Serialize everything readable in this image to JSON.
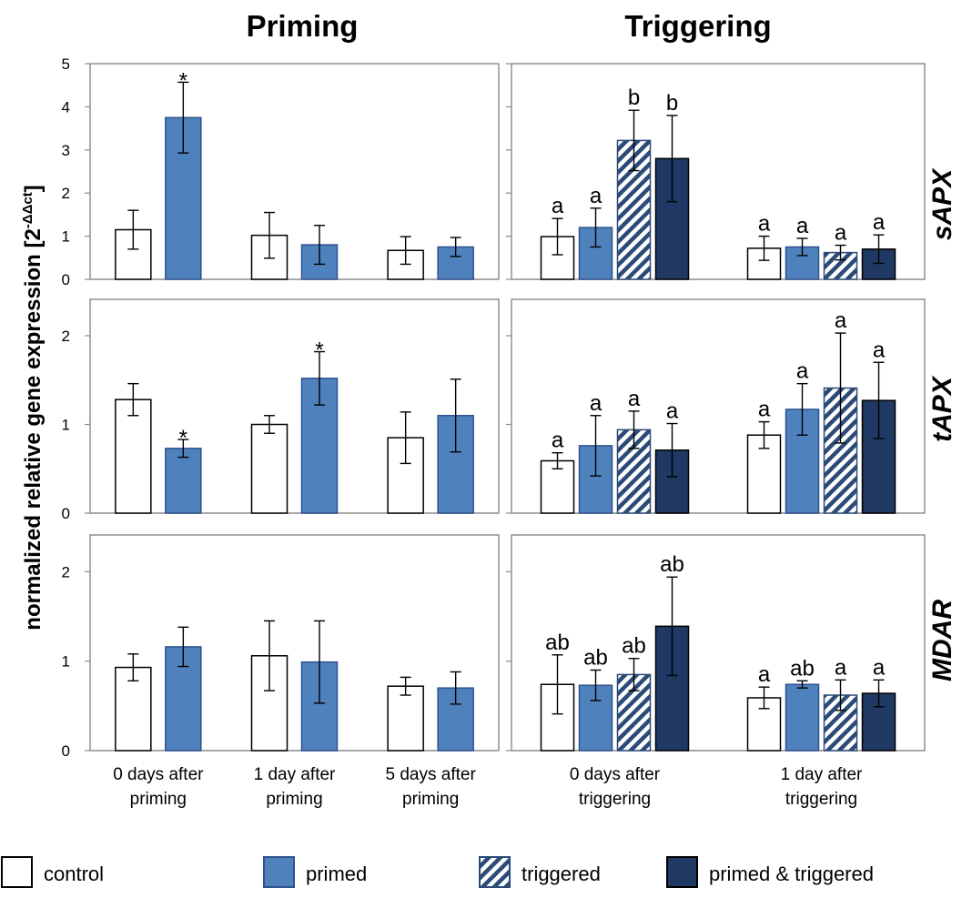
{
  "figure": {
    "column_titles": [
      "Priming",
      "Triggering"
    ],
    "ylabel_main": "normalized relative gene expression [2",
    "ylabel_sup": "-ΔΔct",
    "ylabel_end": "]"
  },
  "legend": [
    {
      "label": "control",
      "style": "control"
    },
    {
      "label": "primed",
      "style": "primed"
    },
    {
      "label": "triggered",
      "style": "triggered"
    },
    {
      "label": "primed & triggered",
      "style": "primed_triggered"
    }
  ],
  "colors": {
    "control": "#ffffff",
    "primed": "#4f81bd",
    "primed_triggered_fill": "#1f3864",
    "triggered_stripe": "#2c4a78",
    "primed_border": "#2f528f",
    "frame": "#7f7f7f"
  },
  "chart_data": [
    {
      "id": "priming_sapx",
      "type": "bar",
      "panel": "Priming",
      "gene": "sAPX",
      "ylim": [
        0,
        5
      ],
      "yticks": [
        "0",
        "1",
        "2",
        "3",
        "4",
        "5"
      ],
      "categories": [
        [
          "0 days after",
          "priming"
        ],
        [
          "1 day after",
          "priming"
        ],
        [
          "5 days after",
          "priming"
        ]
      ],
      "series": [
        {
          "name": "control",
          "style": "control",
          "values": [
            1.15,
            1.02,
            0.67
          ],
          "errors": [
            0.45,
            0.53,
            0.32
          ],
          "labels": [
            "",
            "",
            ""
          ]
        },
        {
          "name": "primed",
          "style": "primed",
          "values": [
            3.75,
            0.8,
            0.75
          ],
          "errors": [
            0.82,
            0.45,
            0.22
          ],
          "labels": [
            "*",
            "",
            ""
          ]
        }
      ]
    },
    {
      "id": "triggering_sapx",
      "type": "bar",
      "panel": "Triggering",
      "gene": "sAPX",
      "ylim": [
        0,
        5
      ],
      "yticks": [
        "",
        "",
        "",
        "",
        "",
        ""
      ],
      "categories": [
        [
          "0 days after",
          "triggering"
        ],
        [
          "1 day after",
          "triggering"
        ]
      ],
      "series": [
        {
          "name": "control",
          "style": "control",
          "values": [
            0.99,
            0.72
          ],
          "errors": [
            0.42,
            0.28
          ],
          "labels": [
            "a",
            "a"
          ]
        },
        {
          "name": "primed",
          "style": "primed",
          "values": [
            1.2,
            0.75
          ],
          "errors": [
            0.45,
            0.2
          ],
          "labels": [
            "a",
            "a"
          ]
        },
        {
          "name": "triggered",
          "style": "triggered",
          "values": [
            3.22,
            0.62
          ],
          "errors": [
            0.7,
            0.17
          ],
          "labels": [
            "b",
            "a"
          ]
        },
        {
          "name": "primed & triggered",
          "style": "primed_triggered",
          "values": [
            2.8,
            0.7
          ],
          "errors": [
            1.0,
            0.33
          ],
          "labels": [
            "b",
            "a"
          ]
        }
      ]
    },
    {
      "id": "priming_tapx",
      "type": "bar",
      "panel": "Priming",
      "gene": "tAPX",
      "ylim": [
        0,
        2.4
      ],
      "yticks": [
        "0",
        "1",
        "2"
      ],
      "categories": [
        [
          "0 days after",
          "priming"
        ],
        [
          "1 day after",
          "priming"
        ],
        [
          "5 days after",
          "priming"
        ]
      ],
      "series": [
        {
          "name": "control",
          "style": "control",
          "values": [
            1.28,
            1.0,
            0.85
          ],
          "errors": [
            0.18,
            0.1,
            0.29
          ],
          "labels": [
            "",
            "",
            ""
          ]
        },
        {
          "name": "primed",
          "style": "primed",
          "values": [
            0.73,
            1.52,
            1.1
          ],
          "errors": [
            0.1,
            0.3,
            0.41
          ],
          "labels": [
            "*",
            "*",
            ""
          ]
        }
      ]
    },
    {
      "id": "triggering_tapx",
      "type": "bar",
      "panel": "Triggering",
      "gene": "tAPX",
      "ylim": [
        0,
        2.4
      ],
      "yticks": [
        "",
        "",
        ""
      ],
      "categories": [
        [
          "0 days after",
          "triggering"
        ],
        [
          "1 day after",
          "triggering"
        ]
      ],
      "series": [
        {
          "name": "control",
          "style": "control",
          "values": [
            0.59,
            0.88
          ],
          "errors": [
            0.09,
            0.15
          ],
          "labels": [
            "a",
            "a"
          ]
        },
        {
          "name": "primed",
          "style": "primed",
          "values": [
            0.76,
            1.17
          ],
          "errors": [
            0.34,
            0.29
          ],
          "labels": [
            "a",
            "a"
          ]
        },
        {
          "name": "triggered",
          "style": "triggered",
          "values": [
            0.94,
            1.41
          ],
          "errors": [
            0.21,
            0.62
          ],
          "labels": [
            "a",
            "a"
          ]
        },
        {
          "name": "primed & triggered",
          "style": "primed_triggered",
          "values": [
            0.71,
            1.27
          ],
          "errors": [
            0.3,
            0.43
          ],
          "labels": [
            "a",
            "a"
          ]
        }
      ]
    },
    {
      "id": "priming_mdar",
      "type": "bar",
      "panel": "Priming",
      "gene": "MDAR",
      "ylim": [
        0,
        2.4
      ],
      "yticks": [
        "0",
        "1",
        "2"
      ],
      "categories": [
        [
          "0 days after",
          "priming"
        ],
        [
          "1 day after",
          "priming"
        ],
        [
          "5 days after",
          "priming"
        ]
      ],
      "series": [
        {
          "name": "control",
          "style": "control",
          "values": [
            0.93,
            1.06,
            0.72
          ],
          "errors": [
            0.15,
            0.39,
            0.1
          ],
          "labels": [
            "",
            "",
            ""
          ]
        },
        {
          "name": "primed",
          "style": "primed",
          "values": [
            1.16,
            0.99,
            0.7
          ],
          "errors": [
            0.22,
            0.46,
            0.18
          ],
          "labels": [
            "",
            "",
            ""
          ]
        }
      ]
    },
    {
      "id": "triggering_mdar",
      "type": "bar",
      "panel": "Triggering",
      "gene": "MDAR",
      "ylim": [
        0,
        2.4
      ],
      "yticks": [
        "",
        "",
        ""
      ],
      "categories": [
        [
          "0 days after",
          "triggering"
        ],
        [
          "1 day after",
          "triggering"
        ]
      ],
      "series": [
        {
          "name": "control",
          "style": "control",
          "values": [
            0.74,
            0.59
          ],
          "errors": [
            0.33,
            0.12
          ],
          "labels": [
            "ab",
            "a"
          ]
        },
        {
          "name": "primed",
          "style": "primed",
          "values": [
            0.73,
            0.74
          ],
          "errors": [
            0.17,
            0.04
          ],
          "labels": [
            "ab",
            "ab"
          ]
        },
        {
          "name": "triggered",
          "style": "triggered",
          "values": [
            0.85,
            0.62
          ],
          "errors": [
            0.18,
            0.17
          ],
          "labels": [
            "ab",
            "a"
          ]
        },
        {
          "name": "primed & triggered",
          "style": "primed_triggered",
          "values": [
            1.39,
            0.64
          ],
          "errors": [
            0.55,
            0.15
          ],
          "labels": [
            "ab",
            "a"
          ]
        }
      ]
    }
  ]
}
